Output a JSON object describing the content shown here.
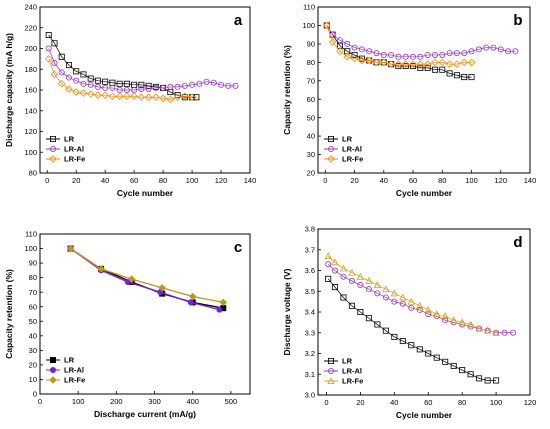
{
  "chart_data": [
    {
      "id": "a",
      "type": "scatter",
      "panel_label": "a",
      "xlabel": "Cycle number",
      "ylabel": "Discharge capacity (mA h/g)",
      "xlim": [
        -5,
        140
      ],
      "ylim": [
        80,
        240
      ],
      "xticks": [
        "0",
        "20",
        "40",
        "60",
        "80",
        "100",
        "120",
        "140"
      ],
      "xtick_values": [
        0,
        20,
        40,
        60,
        80,
        100,
        120,
        140
      ],
      "yticks": [
        "80",
        "100",
        "120",
        "140",
        "160",
        "180",
        "200",
        "220",
        "240"
      ],
      "ytick_values": [
        80,
        100,
        120,
        140,
        160,
        180,
        200,
        220,
        240
      ],
      "legend_position": "bottom-left",
      "series": [
        {
          "name": "LR",
          "color": "#000000",
          "marker": "square",
          "x": [
            1,
            5,
            10,
            15,
            20,
            25,
            30,
            35,
            40,
            45,
            50,
            55,
            60,
            65,
            70,
            75,
            80,
            85,
            90,
            95,
            100,
            103
          ],
          "y": [
            213,
            205,
            192,
            184,
            178,
            175,
            171,
            169,
            168,
            167,
            166,
            166,
            165,
            165,
            164,
            163,
            162,
            158,
            155,
            153,
            153,
            153
          ]
        },
        {
          "name": "LR-Al",
          "color": "#9933cc",
          "marker": "circle",
          "x": [
            1,
            5,
            10,
            15,
            20,
            25,
            30,
            35,
            40,
            45,
            50,
            55,
            60,
            65,
            70,
            75,
            80,
            85,
            90,
            95,
            100,
            105,
            110,
            115,
            120,
            125,
            130
          ],
          "y": [
            200,
            186,
            177,
            172,
            169,
            166,
            165,
            163,
            162,
            162,
            160,
            160,
            160,
            161,
            161,
            162,
            162,
            163,
            163,
            164,
            165,
            166,
            168,
            167,
            165,
            164,
            164
          ]
        },
        {
          "name": "LR-Fe",
          "color": "#ff8800",
          "marker": "diamond",
          "x": [
            1,
            5,
            10,
            15,
            20,
            25,
            30,
            35,
            40,
            45,
            50,
            55,
            60,
            65,
            70,
            75,
            80,
            85,
            90,
            95,
            100
          ],
          "y": [
            190,
            175,
            166,
            161,
            158,
            157,
            156,
            155,
            155,
            154,
            154,
            154,
            154,
            153,
            153,
            153,
            152,
            151,
            153,
            154,
            153
          ]
        }
      ]
    },
    {
      "id": "b",
      "type": "scatter",
      "panel_label": "b",
      "xlabel": "Cycle number",
      "ylabel": "Capacity retention (%)",
      "xlim": [
        -5,
        140
      ],
      "ylim": [
        20,
        110
      ],
      "xticks": [
        "0",
        "20",
        "40",
        "60",
        "80",
        "100",
        "120",
        "140"
      ],
      "xtick_values": [
        0,
        20,
        40,
        60,
        80,
        100,
        120,
        140
      ],
      "yticks": [
        "20",
        "30",
        "40",
        "50",
        "60",
        "70",
        "80",
        "90",
        "100",
        "110"
      ],
      "ytick_values": [
        20,
        30,
        40,
        50,
        60,
        70,
        80,
        90,
        100,
        110
      ],
      "legend_position": "bottom-left",
      "series": [
        {
          "name": "LR",
          "color": "#000000",
          "marker": "square",
          "x": [
            1,
            5,
            10,
            15,
            20,
            25,
            30,
            35,
            40,
            45,
            50,
            55,
            60,
            65,
            70,
            75,
            80,
            85,
            90,
            95,
            100
          ],
          "y": [
            100,
            95,
            89,
            86,
            84,
            82,
            81,
            80,
            80,
            79,
            78,
            78,
            78,
            77,
            77,
            76,
            76,
            74,
            73,
            72,
            72
          ]
        },
        {
          "name": "LR-Al",
          "color": "#9933cc",
          "marker": "circle",
          "x": [
            1,
            5,
            10,
            15,
            20,
            25,
            30,
            35,
            40,
            45,
            50,
            55,
            60,
            65,
            70,
            75,
            80,
            85,
            90,
            95,
            100,
            105,
            110,
            115,
            120,
            125,
            130
          ],
          "y": [
            100,
            95,
            92,
            90,
            88,
            87,
            86,
            85,
            84,
            84,
            83,
            83,
            83,
            83,
            84,
            84,
            84,
            85,
            85,
            85,
            86,
            87,
            88,
            88,
            87,
            86,
            86
          ]
        },
        {
          "name": "LR-Fe",
          "color": "#ff8800",
          "marker": "diamond",
          "x": [
            1,
            5,
            10,
            15,
            20,
            25,
            30,
            35,
            40,
            45,
            50,
            55,
            60,
            65,
            70,
            75,
            80,
            85,
            90,
            95,
            100
          ],
          "y": [
            100,
            91,
            86,
            83,
            82,
            81,
            81,
            80,
            80,
            79,
            79,
            79,
            79,
            79,
            79,
            80,
            80,
            79,
            79,
            80,
            80
          ]
        }
      ]
    },
    {
      "id": "c",
      "type": "line",
      "panel_label": "c",
      "xlabel": "Discharge current (mA/g)",
      "ylabel": "Capacity retention (%)",
      "xlim": [
        0,
        550
      ],
      "ylim": [
        0,
        110
      ],
      "xticks": [
        "0",
        "100",
        "200",
        "300",
        "400",
        "500"
      ],
      "xtick_values": [
        0,
        100,
        200,
        300,
        400,
        500
      ],
      "yticks": [
        "0",
        "10",
        "20",
        "30",
        "40",
        "50",
        "60",
        "70",
        "80",
        "90",
        "100",
        "110"
      ],
      "ytick_values": [
        0,
        10,
        20,
        30,
        40,
        50,
        60,
        70,
        80,
        90,
        100,
        110
      ],
      "legend_position": "bottom-left",
      "series": [
        {
          "name": "LR",
          "color": "#000000",
          "marker": "square",
          "x": [
            80,
            160,
            240,
            320,
            400,
            480
          ],
          "y": [
            100,
            86,
            77,
            69,
            63,
            59
          ]
        },
        {
          "name": "LR-Al",
          "color": "#7a1fd6",
          "marker": "circle",
          "x": [
            80,
            160,
            230,
            315,
            395,
            470
          ],
          "y": [
            100,
            85,
            77,
            70,
            63,
            58
          ]
        },
        {
          "name": "LR-Fe",
          "color": "#b89a1a",
          "marker": "diamond",
          "x": [
            80,
            160,
            240,
            320,
            400,
            480
          ],
          "y": [
            100,
            86,
            79,
            73,
            67,
            63
          ]
        }
      ]
    },
    {
      "id": "d",
      "type": "scatter",
      "panel_label": "d",
      "xlabel": "Cycle number",
      "ylabel": "Discharge voltage (V)",
      "xlim": [
        -5,
        120
      ],
      "ylim": [
        3.0,
        3.8
      ],
      "xticks": [
        "0",
        "20",
        "40",
        "60",
        "80",
        "100",
        "120"
      ],
      "xtick_values": [
        0,
        20,
        40,
        60,
        80,
        100,
        120
      ],
      "yticks": [
        "3.0",
        "3.1",
        "3.2",
        "3.3",
        "3.4",
        "3.5",
        "3.6",
        "3.7",
        "3.8"
      ],
      "ytick_values": [
        3.0,
        3.1,
        3.2,
        3.3,
        3.4,
        3.5,
        3.6,
        3.7,
        3.8
      ],
      "legend_position": "bottom-left",
      "series": [
        {
          "name": "LR",
          "color": "#000000",
          "marker": "square",
          "x": [
            1,
            5,
            10,
            15,
            20,
            25,
            30,
            35,
            40,
            45,
            50,
            55,
            60,
            65,
            70,
            75,
            80,
            85,
            90,
            95,
            100
          ],
          "y": [
            3.56,
            3.52,
            3.47,
            3.43,
            3.4,
            3.37,
            3.34,
            3.31,
            3.28,
            3.26,
            3.24,
            3.22,
            3.2,
            3.18,
            3.16,
            3.14,
            3.12,
            3.1,
            3.08,
            3.07,
            3.07
          ]
        },
        {
          "name": "LR-Al",
          "color": "#9933cc",
          "marker": "circle",
          "x": [
            1,
            5,
            10,
            15,
            20,
            25,
            30,
            35,
            40,
            45,
            50,
            55,
            60,
            65,
            70,
            75,
            80,
            85,
            90,
            95,
            100,
            105,
            110
          ],
          "y": [
            3.63,
            3.6,
            3.57,
            3.55,
            3.53,
            3.51,
            3.49,
            3.47,
            3.45,
            3.44,
            3.42,
            3.41,
            3.39,
            3.38,
            3.36,
            3.35,
            3.34,
            3.33,
            3.32,
            3.31,
            3.3,
            3.3,
            3.3
          ]
        },
        {
          "name": "LR-Fe",
          "color": "#d4a017",
          "marker": "triangle",
          "x": [
            1,
            5,
            10,
            15,
            20,
            25,
            30,
            35,
            40,
            45,
            50,
            55,
            60,
            65,
            70,
            75,
            80,
            85,
            90,
            95,
            100
          ],
          "y": [
            3.67,
            3.64,
            3.61,
            3.59,
            3.57,
            3.55,
            3.53,
            3.51,
            3.49,
            3.47,
            3.45,
            3.43,
            3.41,
            3.39,
            3.38,
            3.36,
            3.35,
            3.34,
            3.32,
            3.31,
            3.3
          ]
        }
      ]
    }
  ]
}
